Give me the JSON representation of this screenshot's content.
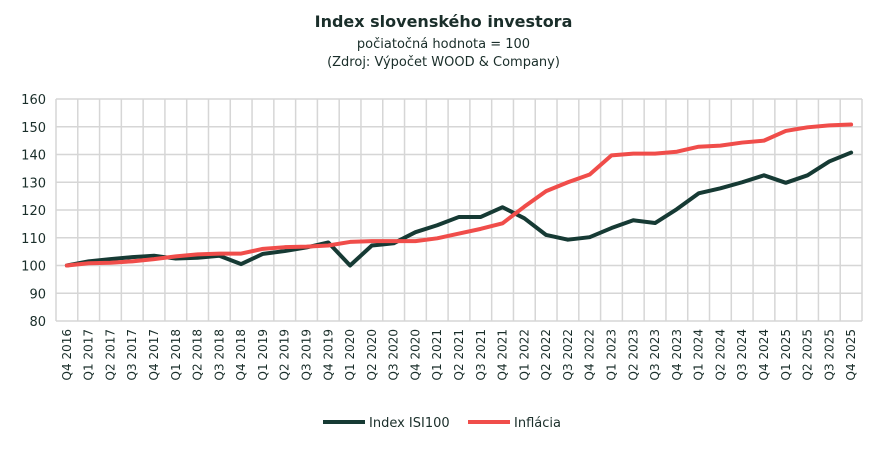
{
  "chart_data": {
    "type": "line",
    "title": "Index slovenského investora",
    "subtitle": "počiatočná hodnota = 100",
    "source": "(Zdroj: Výpočet WOOD & Company)",
    "xlabel": "",
    "ylabel": "",
    "ylim": [
      80,
      160
    ],
    "yticks": [
      80,
      90,
      100,
      110,
      120,
      130,
      140,
      150,
      160
    ],
    "grid": true,
    "legend_position": "bottom",
    "categories": [
      "Q4 2016",
      "Q1 2017",
      "Q2 2017",
      "Q3 2017",
      "Q4 2017",
      "Q1 2018",
      "Q2 2018",
      "Q3 2018",
      "Q4 2018",
      "Q1 2019",
      "Q2 2019",
      "Q3 2019",
      "Q4 2019",
      "Q1 2020",
      "Q2 2020",
      "Q3 2020",
      "Q4 2020",
      "Q1 2021",
      "Q2 2021",
      "Q3 2021",
      "Q4 2021",
      "Q1 2022",
      "Q2 2022",
      "Q3 2022",
      "Q4 2022",
      "Q1 2023",
      "Q2 2023",
      "Q3 2023",
      "Q4 2023",
      "Q1 2024",
      "Q2 2024",
      "Q3 2024",
      "Q4 2024",
      "Q1 2025",
      "Q2 2025",
      "Q3 2025",
      "Q4 2025"
    ],
    "series": [
      {
        "name": "Index ISI100",
        "color": "#163a34",
        "values": [
          100,
          101.5,
          102.3,
          103,
          103.5,
          102.5,
          102.8,
          103.5,
          100.5,
          104.2,
          105.2,
          106.5,
          108.3,
          100,
          107.2,
          108,
          112,
          114.5,
          117.5,
          117.5,
          121,
          117,
          111,
          109.3,
          110.2,
          113.5,
          116.3,
          115.3,
          120.3,
          126,
          127.8,
          130,
          132.5,
          129.8,
          132.5,
          137.5,
          140.7
        ]
      },
      {
        "name": "Inflácia",
        "color": "#f04d4a",
        "values": [
          100,
          100.8,
          101,
          101.5,
          102.3,
          103.3,
          104,
          104.3,
          104.3,
          106,
          106.6,
          106.8,
          107.2,
          108.5,
          108.8,
          108.8,
          108.8,
          109.8,
          111.5,
          113.2,
          115.2,
          121.2,
          126.8,
          130,
          132.8,
          139.7,
          140.3,
          140.3,
          141,
          142.8,
          143.2,
          144.3,
          145,
          148.5,
          149.8,
          150.5,
          150.8
        ]
      }
    ]
  }
}
